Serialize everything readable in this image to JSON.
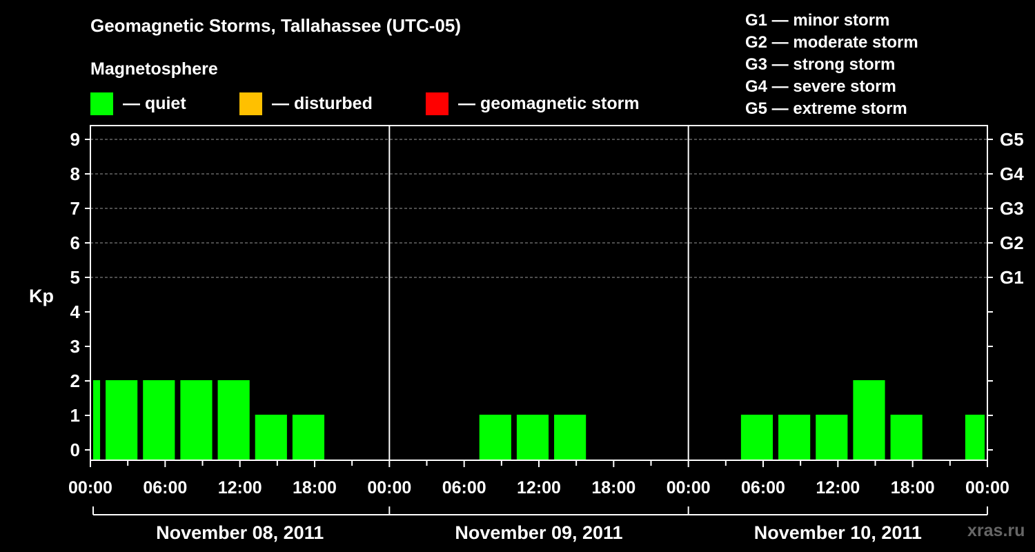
{
  "header": {
    "title": "Geomagnetic Storms, Tallahassee (UTC-05)",
    "magnetosphere_label": "Magnetosphere"
  },
  "legend": [
    {
      "label": "— quiet",
      "color": "#00ff00"
    },
    {
      "label": "— disturbed",
      "color": "#ffc000"
    },
    {
      "label": "— geomagnetic storm",
      "color": "#ff0000"
    }
  ],
  "storm_scale": [
    "G1 — minor storm",
    "G2 — moderate storm",
    "G3 — strong storm",
    "G4 — severe storm",
    "G5 — extreme storm"
  ],
  "watermark": "xras.ru",
  "chart_data": {
    "type": "bar",
    "ylabel": "Kp",
    "ylim": [
      0,
      9
    ],
    "y_ticks": [
      0,
      1,
      2,
      3,
      4,
      5,
      6,
      7,
      8,
      9
    ],
    "right_axis_labels": [
      {
        "kp": 5,
        "label": "G1"
      },
      {
        "kp": 6,
        "label": "G2"
      },
      {
        "kp": 7,
        "label": "G3"
      },
      {
        "kp": 8,
        "label": "G4"
      },
      {
        "kp": 9,
        "label": "G5"
      }
    ],
    "x_range_hours": [
      0,
      72
    ],
    "x_tick_labels": [
      "00:00",
      "06:00",
      "12:00",
      "18:00",
      "00:00",
      "06:00",
      "12:00",
      "18:00",
      "00:00",
      "06:00",
      "12:00",
      "18:00",
      "00:00"
    ],
    "days": [
      "November 08, 2011",
      "November 09, 2011",
      "November 10, 2011"
    ],
    "bar_color": "#00ff00",
    "bars": [
      {
        "start": 0,
        "end": 1,
        "kp": 2
      },
      {
        "start": 1,
        "end": 4,
        "kp": 2
      },
      {
        "start": 4,
        "end": 7,
        "kp": 2
      },
      {
        "start": 7,
        "end": 10,
        "kp": 2
      },
      {
        "start": 10,
        "end": 13,
        "kp": 2
      },
      {
        "start": 13,
        "end": 16,
        "kp": 1
      },
      {
        "start": 16,
        "end": 19,
        "kp": 1
      },
      {
        "start": 31,
        "end": 34,
        "kp": 1
      },
      {
        "start": 34,
        "end": 37,
        "kp": 1
      },
      {
        "start": 37,
        "end": 40,
        "kp": 1
      },
      {
        "start": 52,
        "end": 55,
        "kp": 1
      },
      {
        "start": 55,
        "end": 58,
        "kp": 1
      },
      {
        "start": 58,
        "end": 61,
        "kp": 1
      },
      {
        "start": 61,
        "end": 64,
        "kp": 2
      },
      {
        "start": 64,
        "end": 67,
        "kp": 1
      },
      {
        "start": 70,
        "end": 72,
        "kp": 1
      }
    ]
  }
}
